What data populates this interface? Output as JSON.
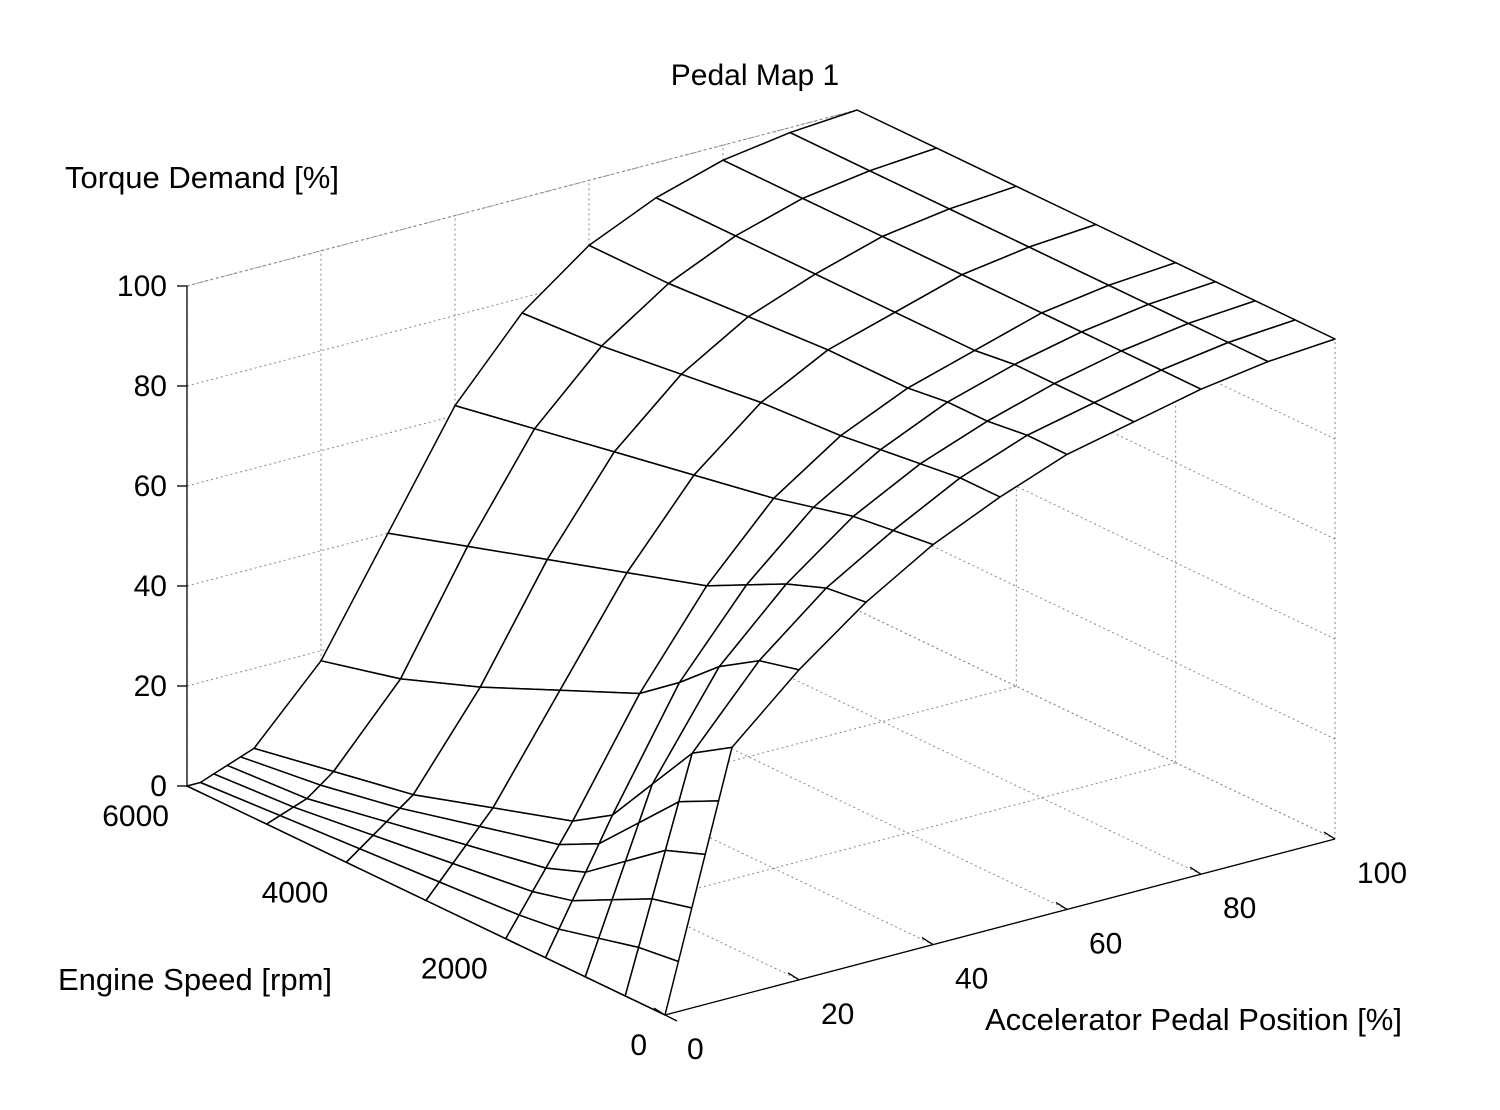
{
  "chart_data": {
    "type": "surface",
    "title": "Pedal Map 1",
    "xlabel": "Accelerator Pedal Position [%]",
    "ylabel": "Engine Speed [rpm]",
    "zlabel": "Torque Demand [%]",
    "xlim": [
      0,
      100
    ],
    "ylim": [
      0,
      6000
    ],
    "zlim": [
      0,
      100
    ],
    "xticks": [
      "0",
      "20",
      "40",
      "60",
      "80",
      "100"
    ],
    "yticks": [
      "0",
      "2000",
      "4000",
      "6000"
    ],
    "zticks": [
      "0",
      "20",
      "40",
      "60",
      "80",
      "100"
    ],
    "grid": true,
    "pedal": [
      0,
      2,
      4,
      6,
      8,
      10,
      20,
      30,
      40,
      50,
      60,
      70,
      80,
      90,
      100
    ],
    "speed": [
      0,
      500,
      1000,
      1500,
      2000,
      3000,
      4000,
      5000,
      6000
    ],
    "torque": [
      [
        0,
        10,
        20,
        30,
        40,
        50,
        62,
        72,
        80,
        86,
        91,
        94,
        97,
        99,
        100
      ],
      [
        0,
        9,
        18,
        27,
        36,
        45,
        60,
        71,
        79,
        86,
        91,
        94,
        97,
        99,
        100
      ],
      [
        0,
        7,
        14,
        21,
        28,
        35,
        55,
        68,
        78,
        85,
        90,
        94,
        97,
        99,
        100
      ],
      [
        0,
        5,
        10,
        15,
        20,
        25,
        48,
        64,
        76,
        84,
        90,
        94,
        97,
        99,
        100
      ],
      [
        0,
        4,
        8,
        12,
        16,
        20,
        42,
        60,
        74,
        83,
        89,
        93,
        97,
        99,
        100
      ],
      [
        0,
        3,
        6,
        9,
        12,
        15,
        35,
        55,
        71,
        82,
        89,
        93,
        97,
        99,
        100
      ],
      [
        0,
        2,
        4,
        6,
        8,
        10,
        28,
        50,
        68,
        80,
        88,
        93,
        97,
        99,
        100
      ],
      [
        0,
        1,
        2,
        3,
        5,
        7,
        22,
        45,
        65,
        78,
        87,
        93,
        97,
        99,
        100
      ],
      [
        0,
        0,
        1,
        2,
        3,
        4,
        18,
        40,
        62,
        77,
        87,
        93,
        97,
        99,
        100
      ]
    ]
  }
}
